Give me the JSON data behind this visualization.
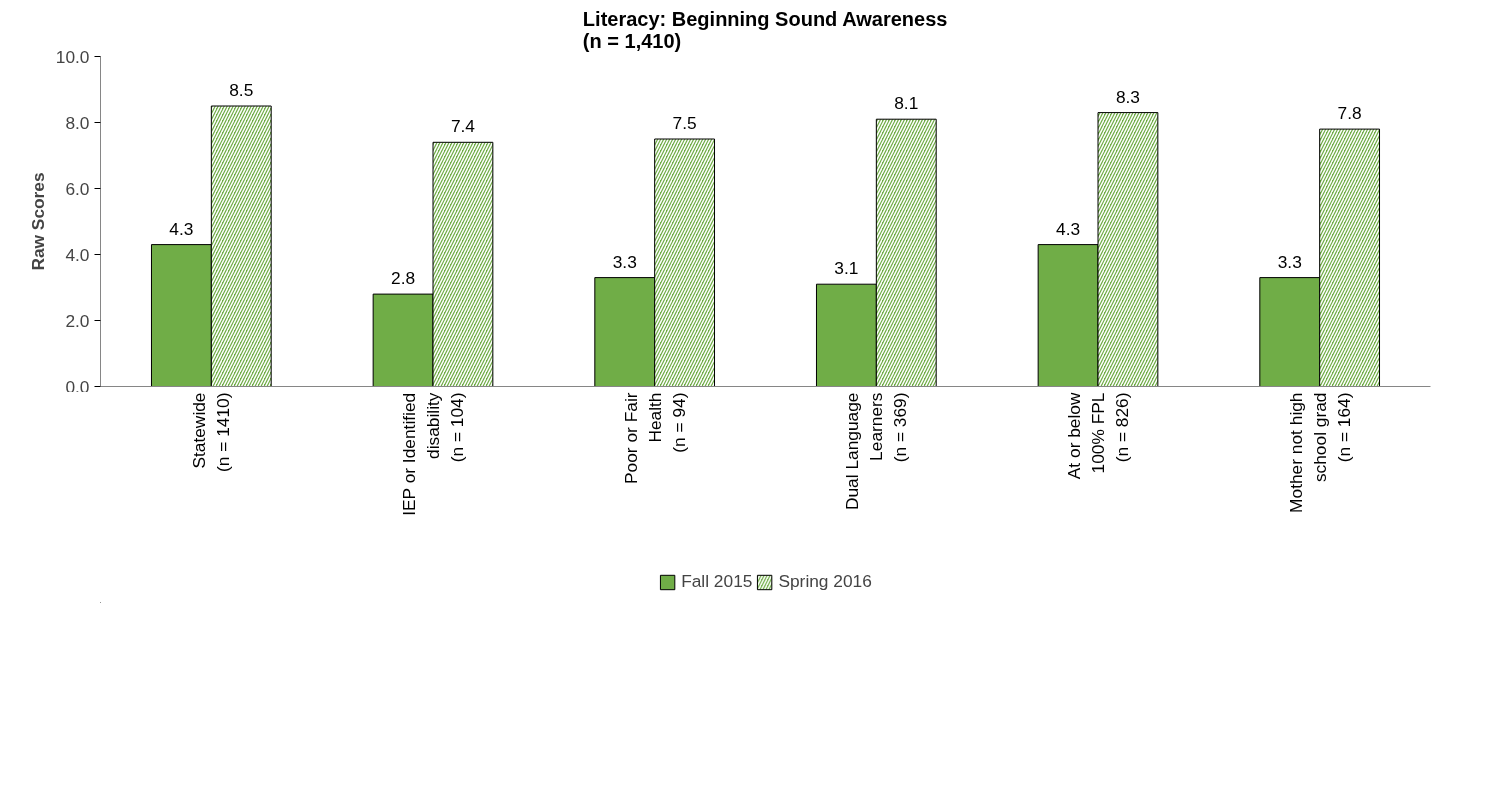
{
  "chart_data": {
    "type": "bar",
    "title": "Literacy: Beginning Sound Awareness\n(n = 1,410)",
    "ylabel": "Raw Scores",
    "categories": [
      "Statewide\n(n = 1410)",
      "IEP or Identified\ndisability\n(n = 104)",
      "Poor or Fair\nHealth\n(n = 94)",
      "Dual Language\nLearners\n(n = 369)",
      "At or below\n100% FPL\n(n = 826)",
      "Mother not high\nschool grad\n(n = 164)"
    ],
    "series": [
      {
        "name": "Fall 2015",
        "color": "#70ad47",
        "values": [
          4.3,
          2.8,
          3.3,
          3.1,
          4.3,
          3.3
        ]
      },
      {
        "name": "Spring 2016",
        "color": "#70ad47",
        "values": [
          8.5,
          7.4,
          7.5,
          8.1,
          8.3,
          7.8
        ]
      }
    ],
    "ylim": [
      0,
      10
    ],
    "yticks": [
      {
        "value": 0,
        "label": "0.0"
      },
      {
        "value": 2,
        "label": "2.0"
      },
      {
        "value": 4,
        "label": "4.0"
      },
      {
        "value": 6,
        "label": "6.0"
      },
      {
        "value": 8,
        "label": "8.0"
      },
      {
        "value": 10,
        "label": "10.0"
      }
    ],
    "data_labels": true,
    "legend": "bottom",
    "grid": false
  }
}
